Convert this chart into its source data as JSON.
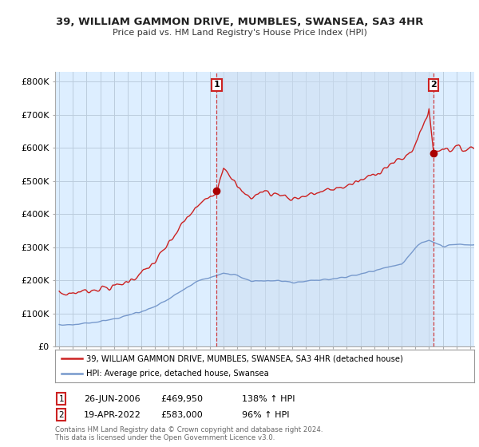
{
  "title": "39, WILLIAM GAMMON DRIVE, MUMBLES, SWANSEA, SA3 4HR",
  "subtitle": "Price paid vs. HM Land Registry's House Price Index (HPI)",
  "legend_line1": "39, WILLIAM GAMMON DRIVE, MUMBLES, SWANSEA, SA3 4HR (detached house)",
  "legend_line2": "HPI: Average price, detached house, Swansea",
  "footnote": "Contains HM Land Registry data © Crown copyright and database right 2024.\nThis data is licensed under the Open Government Licence v3.0.",
  "sale1_date": "26-JUN-2006",
  "sale1_price": "£469,950",
  "sale1_hpi": "138% ↑ HPI",
  "sale2_date": "19-APR-2022",
  "sale2_price": "£583,000",
  "sale2_hpi": "96% ↑ HPI",
  "red_color": "#cc2222",
  "blue_color": "#7799cc",
  "plot_bg_color": "#ddeeff",
  "background_color": "#ffffff",
  "grid_color": "#bbccdd",
  "vline_color": "#cc2222",
  "sale1_x": 2006.5,
  "sale1_y": 469950,
  "sale2_x": 2022.33,
  "sale2_y": 583000,
  "ylim": [
    0,
    830000
  ],
  "yticks": [
    0,
    100000,
    200000,
    300000,
    400000,
    500000,
    600000,
    700000,
    800000
  ],
  "ytick_labels": [
    "£0",
    "£100K",
    "£200K",
    "£300K",
    "£400K",
    "£500K",
    "£600K",
    "£700K",
    "£800K"
  ],
  "xmin": 1994.7,
  "xmax": 2025.3
}
